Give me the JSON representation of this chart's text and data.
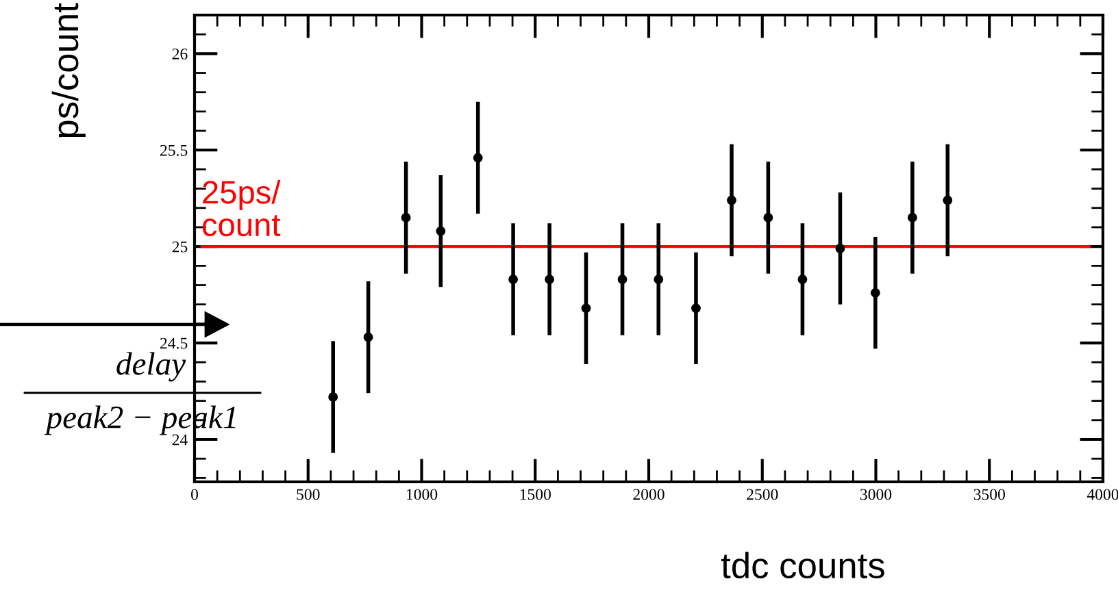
{
  "chart_data": {
    "type": "scatter",
    "xlabel": "tdc counts",
    "ylabel": "ps/count",
    "x": [
      610,
      765,
      931,
      1084,
      1248,
      1403,
      1563,
      1724,
      1884,
      2043,
      2208,
      2365,
      2526,
      2677,
      2843,
      2998,
      3161,
      3316
    ],
    "values": [
      24.22,
      24.53,
      25.15,
      25.08,
      25.46,
      24.83,
      24.83,
      24.68,
      24.83,
      24.83,
      24.68,
      25.24,
      25.15,
      24.83,
      24.99,
      24.76,
      25.15,
      25.24
    ],
    "errors": [
      0.29,
      0.29,
      0.29,
      0.29,
      0.29,
      0.29,
      0.29,
      0.29,
      0.29,
      0.29,
      0.29,
      0.29,
      0.29,
      0.29,
      0.29,
      0.29,
      0.29,
      0.29
    ],
    "color": "#000000",
    "marker": "circle",
    "xlim": [
      0,
      4000
    ],
    "xticks": [
      0,
      500,
      1000,
      1500,
      2000,
      2500,
      3000,
      3500,
      4000
    ],
    "ylim": [
      23.78,
      26.2
    ],
    "yticks": [
      24,
      24.5,
      25,
      25.5,
      26
    ],
    "ref_lines": [
      {
        "axis": "y",
        "value": 25,
        "label": "25ps/\ncount",
        "color": "#ff0000"
      }
    ],
    "annotations": [
      "delay",
      "peak2 − peak1"
    ],
    "grid": false
  }
}
